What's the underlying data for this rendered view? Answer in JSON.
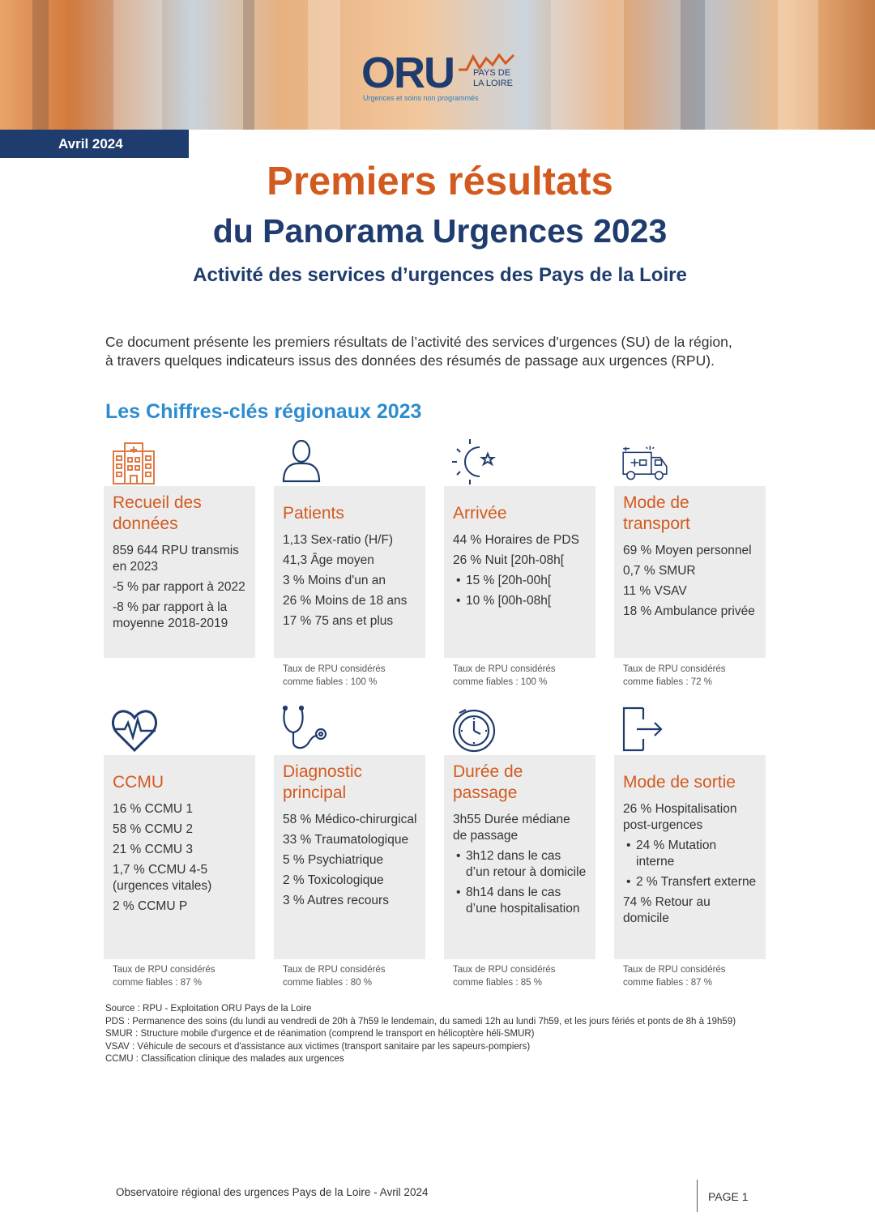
{
  "header": {
    "logo_text": "ORU",
    "logo_region": "PAYS DE LA LOIRE",
    "logo_tagline": "Urgences et soins non programmés",
    "date": "Avril 2024"
  },
  "titles": {
    "line1": "Premiers résultats",
    "line2": "du Panorama Urgences 2023",
    "line3": "Activité des services d’urgences des Pays de la Loire"
  },
  "intro": {
    "line1": "Ce document présente les premiers résultats de l’activité des services d'urgences (SU) de la région,",
    "line2": "à travers quelques indicateurs issus des données des résumés de passage aux urgences (RPU)."
  },
  "section_title": "Les Chiffres-clés régionaux 2023",
  "cards": [
    {
      "icon": "hospital-icon",
      "title_lines": [
        "Recueil des",
        "données"
      ],
      "lines": [
        {
          "text": "859 644 RPU transmis en 2023",
          "bullet": false
        },
        {
          "text": "-5 % par rapport à 2022",
          "bullet": false
        },
        {
          "text": "-8 % par rapport à la moyenne 2018-2019",
          "bullet": false
        }
      ],
      "note_lines": []
    },
    {
      "icon": "person-icon",
      "title_lines": [
        "Patients"
      ],
      "lines": [
        {
          "text": "1,13 Sex-ratio (H/F)",
          "bullet": false
        },
        {
          "text": "41,3 Âge moyen",
          "bullet": false
        },
        {
          "text": "3 % Moins d'un an",
          "bullet": false
        },
        {
          "text": "26 % Moins de 18 ans",
          "bullet": false
        },
        {
          "text": "17 % 75 ans et plus",
          "bullet": false
        }
      ],
      "note_lines": [
        "Taux de RPU considérés",
        "comme fiables : 100 %"
      ]
    },
    {
      "icon": "sun-moon-icon",
      "title_lines": [
        "Arrivée"
      ],
      "lines": [
        {
          "text": "44 % Horaires de PDS",
          "bullet": false
        },
        {
          "text": "26 % Nuit [20h-08h[",
          "bullet": false
        },
        {
          "text": "15 % [20h-00h[",
          "bullet": true
        },
        {
          "text": "10 % [00h-08h[",
          "bullet": true
        }
      ],
      "note_lines": [
        "Taux de RPU considérés",
        "comme fiables : 100 %"
      ]
    },
    {
      "icon": "ambulance-icon",
      "title_lines": [
        "Mode de",
        "transport"
      ],
      "lines": [
        {
          "text": "69 % Moyen personnel",
          "bullet": false
        },
        {
          "text": "0,7 % SMUR",
          "bullet": false
        },
        {
          "text": "11 % VSAV",
          "bullet": false
        },
        {
          "text": "18 % Ambulance privée",
          "bullet": false
        }
      ],
      "note_lines": [
        "Taux de RPU considérés",
        "comme fiables : 72 %"
      ]
    },
    {
      "icon": "heart-pulse-icon",
      "title_lines": [
        "CCMU"
      ],
      "lines": [
        {
          "text": "16 % CCMU 1",
          "bullet": false
        },
        {
          "text": "58 % CCMU 2",
          "bullet": false
        },
        {
          "text": "21 % CCMU 3",
          "bullet": false
        },
        {
          "text": "1,7 % CCMU 4-5 (urgences vitales)",
          "bullet": false
        },
        {
          "text": "2 % CCMU P",
          "bullet": false
        }
      ],
      "note_lines": [
        "Taux de RPU considérés",
        "comme fiables : 87 %"
      ]
    },
    {
      "icon": "stethoscope-icon",
      "title_lines": [
        "Diagnostic",
        "principal"
      ],
      "lines": [
        {
          "text": "58 % Médico-chirurgical",
          "bullet": false
        },
        {
          "text": "33 % Traumatologique",
          "bullet": false
        },
        {
          "text": "5 % Psychiatrique",
          "bullet": false
        },
        {
          "text": "2 % Toxicologique",
          "bullet": false
        },
        {
          "text": "3 % Autres recours",
          "bullet": false
        }
      ],
      "note_lines": [
        "Taux de RPU considérés",
        "comme fiables : 80 %"
      ]
    },
    {
      "icon": "clock-icon",
      "title_lines": [
        "Durée de",
        "passage"
      ],
      "lines": [
        {
          "text": "3h55 Durée médiane de passage",
          "bullet": false
        },
        {
          "text": "3h12 dans le cas d’un retour à domicile",
          "bullet": true
        },
        {
          "text": "8h14 dans le cas d’une hospitalisation",
          "bullet": true
        }
      ],
      "note_lines": [
        "Taux de RPU considérés",
        "comme fiables : 85 %"
      ]
    },
    {
      "icon": "exit-icon",
      "title_lines": [
        "Mode de sortie"
      ],
      "lines": [
        {
          "text": "26 % Hospitalisation post-urgences",
          "bullet": false
        },
        {
          "text": "24 % Mutation interne",
          "bullet": true
        },
        {
          "text": "2 % Transfert externe",
          "bullet": true
        },
        {
          "text": "74 % Retour au domicile",
          "bullet": false
        }
      ],
      "note_lines": [
        "Taux de RPU considérés",
        "comme fiables : 87 %"
      ]
    }
  ],
  "footnotes": [
    "Source : RPU - Exploitation ORU Pays de la Loire",
    "PDS : Permanence des soins (du lundi au vendredi de 20h à 7h59 le lendemain, du samedi 12h au lundi 7h59, et les jours fériés et ponts de 8h à 19h59)",
    "SMUR : Structure mobile d'urgence et de réanimation (comprend le transport en hélicoptère héli-SMUR)",
    "VSAV : Véhicule de secours et d'assistance aux victimes (transport sanitaire par les sapeurs-pompiers)",
    "CCMU : Classification clinique des malades aux urgences"
  ],
  "footer": {
    "text": "Observatoire régional des urgences Pays de la Loire - Avril 2024",
    "page": "PAGE 1"
  },
  "colors": {
    "orange": "#d35a1f",
    "navy": "#1f3c6e",
    "blue": "#2d8ccf",
    "card_bg": "#ececec"
  }
}
